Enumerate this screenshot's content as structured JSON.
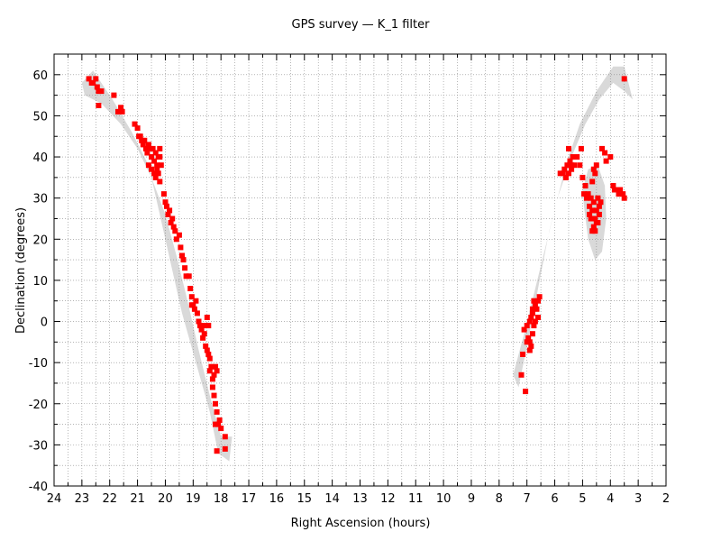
{
  "chart_data": {
    "type": "scatter",
    "title": "GPS survey — K_1 filter",
    "xlabel": "Right Ascension (hours)",
    "ylabel": "Declination (degrees)",
    "xlim": [
      24,
      2
    ],
    "ylim": [
      -40,
      65
    ],
    "x_reversed": true,
    "grid": true,
    "grid_style": "dotted",
    "x_ticks": [
      24,
      23,
      22,
      21,
      20,
      19,
      18,
      17,
      16,
      15,
      14,
      13,
      12,
      11,
      10,
      9,
      8,
      7,
      6,
      5,
      4,
      3,
      2
    ],
    "y_ticks": [
      -40,
      -30,
      -20,
      -10,
      0,
      10,
      20,
      30,
      40,
      50,
      60
    ],
    "colors": {
      "points": "#ff0000",
      "coverage": "#d9d9d9",
      "grid": "#888888"
    },
    "coverage_regions": [
      {
        "ra": [
          22.9,
          22.3,
          21.6,
          21.0,
          20.5,
          20.0,
          19.6,
          19.2,
          18.8,
          18.4,
          18.0,
          17.6,
          17.7,
          18.1,
          18.4,
          18.9,
          19.4,
          19.8,
          20.2,
          20.6,
          21.2,
          21.9,
          22.6,
          23.0
        ],
        "dec": [
          55,
          53,
          48,
          42,
          35,
          26,
          16,
          5,
          -7,
          -18,
          -28,
          -28,
          -34,
          -32,
          -22,
          -10,
          2,
          14,
          26,
          38,
          46,
          54,
          61,
          58
        ]
      },
      {
        "ra": [
          7.5,
          7.1,
          6.7,
          6.3,
          5.9,
          5.4,
          4.9,
          4.4,
          3.9,
          3.5,
          3.2,
          3.5,
          3.9,
          4.5,
          5.1,
          5.6,
          6.2,
          6.6,
          7.0,
          7.3
        ],
        "dec": [
          -13,
          -3,
          8,
          19,
          30,
          40,
          48,
          54,
          58,
          56,
          54,
          62,
          62,
          56,
          48,
          38,
          22,
          8,
          -6,
          -16
        ]
      },
      {
        "ra": [
          4.95,
          4.8,
          4.55,
          4.3,
          4.15,
          4.2,
          4.45,
          4.8,
          5.0,
          4.95
        ],
        "dec": [
          28,
          20,
          15,
          17,
          25,
          33,
          38,
          37,
          32,
          28
        ]
      }
    ],
    "points": [
      [
        22.75,
        59
      ],
      [
        22.65,
        58
      ],
      [
        22.6,
        58
      ],
      [
        22.5,
        59
      ],
      [
        22.45,
        57
      ],
      [
        22.4,
        56
      ],
      [
        22.3,
        56
      ],
      [
        22.4,
        52.5
      ],
      [
        21.85,
        55
      ],
      [
        21.7,
        51
      ],
      [
        21.6,
        52
      ],
      [
        21.55,
        51
      ],
      [
        21.1,
        48
      ],
      [
        21.0,
        47
      ],
      [
        20.95,
        45
      ],
      [
        20.9,
        45
      ],
      [
        20.85,
        44
      ],
      [
        20.8,
        43
      ],
      [
        20.75,
        44
      ],
      [
        20.7,
        42
      ],
      [
        20.65,
        41
      ],
      [
        20.6,
        43
      ],
      [
        20.55,
        42
      ],
      [
        20.5,
        40
      ],
      [
        20.45,
        42
      ],
      [
        20.4,
        39
      ],
      [
        20.35,
        41
      ],
      [
        20.3,
        38
      ],
      [
        20.25,
        40
      ],
      [
        20.2,
        42
      ],
      [
        20.6,
        38
      ],
      [
        20.5,
        37
      ],
      [
        20.4,
        36
      ],
      [
        20.35,
        35
      ],
      [
        20.3,
        37
      ],
      [
        20.25,
        36
      ],
      [
        20.2,
        34
      ],
      [
        20.15,
        38
      ],
      [
        20.2,
        40
      ],
      [
        20.05,
        31
      ],
      [
        20.0,
        29
      ],
      [
        19.95,
        28
      ],
      [
        19.9,
        26
      ],
      [
        19.85,
        27
      ],
      [
        19.8,
        24
      ],
      [
        19.75,
        25
      ],
      [
        19.7,
        23
      ],
      [
        19.65,
        22
      ],
      [
        19.6,
        20
      ],
      [
        19.5,
        21
      ],
      [
        19.45,
        18
      ],
      [
        19.4,
        16
      ],
      [
        19.35,
        15
      ],
      [
        19.3,
        13
      ],
      [
        19.25,
        11
      ],
      [
        19.15,
        11
      ],
      [
        19.1,
        8
      ],
      [
        19.05,
        6
      ],
      [
        19.0,
        4
      ],
      [
        19.05,
        4
      ],
      [
        18.95,
        3
      ],
      [
        18.9,
        5
      ],
      [
        18.85,
        2
      ],
      [
        18.8,
        0
      ],
      [
        18.75,
        -1
      ],
      [
        18.7,
        -2
      ],
      [
        18.65,
        -4
      ],
      [
        18.6,
        -3
      ],
      [
        18.55,
        -6
      ],
      [
        18.5,
        -7
      ],
      [
        18.45,
        -8
      ],
      [
        18.4,
        -9
      ],
      [
        18.6,
        -1
      ],
      [
        18.5,
        1
      ],
      [
        18.45,
        -1
      ],
      [
        18.4,
        -12
      ],
      [
        18.35,
        -11
      ],
      [
        18.3,
        -14
      ],
      [
        18.25,
        -13
      ],
      [
        18.2,
        -11
      ],
      [
        18.15,
        -12
      ],
      [
        18.3,
        -16
      ],
      [
        18.25,
        -18
      ],
      [
        18.2,
        -20
      ],
      [
        18.15,
        -22
      ],
      [
        18.2,
        -25
      ],
      [
        18.1,
        -25
      ],
      [
        18.0,
        -26
      ],
      [
        18.05,
        -24
      ],
      [
        17.85,
        -28
      ],
      [
        17.85,
        -31
      ],
      [
        18.15,
        -31.5
      ],
      [
        7.2,
        -13
      ],
      [
        7.05,
        -17
      ],
      [
        7.15,
        -8
      ],
      [
        7.0,
        -5
      ],
      [
        7.1,
        -2
      ],
      [
        7.0,
        -1
      ],
      [
        6.95,
        -4
      ],
      [
        6.9,
        -7
      ],
      [
        6.85,
        -6
      ],
      [
        6.9,
        0
      ],
      [
        6.85,
        1
      ],
      [
        6.8,
        2
      ],
      [
        6.75,
        -1
      ],
      [
        6.7,
        0
      ],
      [
        6.8,
        3
      ],
      [
        6.7,
        4
      ],
      [
        6.75,
        5
      ],
      [
        6.65,
        3
      ],
      [
        6.6,
        5
      ],
      [
        6.55,
        6
      ],
      [
        6.6,
        1
      ],
      [
        6.8,
        -3
      ],
      [
        6.9,
        -5
      ],
      [
        5.8,
        36
      ],
      [
        5.7,
        36
      ],
      [
        5.65,
        37
      ],
      [
        5.6,
        35
      ],
      [
        5.55,
        38
      ],
      [
        5.5,
        36
      ],
      [
        5.45,
        39
      ],
      [
        5.4,
        38
      ],
      [
        5.35,
        40
      ],
      [
        5.3,
        38
      ],
      [
        5.5,
        42
      ],
      [
        5.4,
        37
      ],
      [
        5.2,
        40
      ],
      [
        5.05,
        42
      ],
      [
        5.1,
        38
      ],
      [
        5.0,
        35
      ],
      [
        4.95,
        31
      ],
      [
        4.9,
        33
      ],
      [
        4.85,
        30
      ],
      [
        4.8,
        31
      ],
      [
        4.75,
        28
      ],
      [
        4.7,
        30
      ],
      [
        4.65,
        27
      ],
      [
        4.6,
        29
      ],
      [
        4.55,
        25
      ],
      [
        4.5,
        27
      ],
      [
        4.45,
        24
      ],
      [
        4.4,
        26
      ],
      [
        4.6,
        23
      ],
      [
        4.7,
        25
      ],
      [
        4.75,
        26
      ],
      [
        4.65,
        34
      ],
      [
        4.6,
        37
      ],
      [
        4.55,
        36
      ],
      [
        4.5,
        38
      ],
      [
        4.45,
        30
      ],
      [
        4.4,
        28
      ],
      [
        4.35,
        29
      ],
      [
        4.55,
        22
      ],
      [
        4.5,
        24
      ],
      [
        4.65,
        22
      ],
      [
        4.3,
        42
      ],
      [
        4.2,
        41
      ],
      [
        4.15,
        39
      ],
      [
        4.0,
        40
      ],
      [
        3.9,
        33
      ],
      [
        3.85,
        32
      ],
      [
        3.8,
        32
      ],
      [
        3.7,
        31
      ],
      [
        3.65,
        32
      ],
      [
        3.55,
        31
      ],
      [
        3.5,
        30
      ],
      [
        3.5,
        59
      ]
    ]
  }
}
